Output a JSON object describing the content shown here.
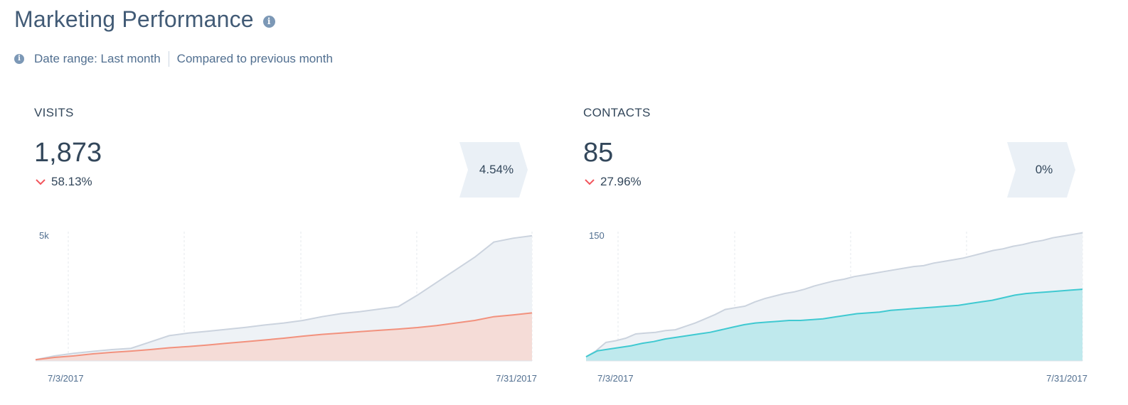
{
  "header": {
    "title": "Marketing Performance",
    "date_range": "Date range: Last month",
    "comparison": "Compared to previous month"
  },
  "cards": {
    "visits": {
      "label": "VISITS",
      "value": "1,873",
      "change": "58.13%",
      "change_direction": "down",
      "conversion": "4.54%"
    },
    "contacts": {
      "label": "CONTACTS",
      "value": "85",
      "change": "27.96%",
      "change_direction": "down",
      "conversion": "0%"
    }
  },
  "colors": {
    "visits_line": "#f2917d",
    "visits_fill": "#f5dcd7",
    "contacts_line": "#3fc9d1",
    "contacts_fill": "#bfe9ed",
    "previous_line": "#cbd3de",
    "previous_fill": "#eef2f6",
    "down_arrow": "#f2545b",
    "badge": "#eaf0f6"
  },
  "chart_data": [
    {
      "type": "area",
      "y_tick_label": "5k",
      "ylim": [
        0,
        5000
      ],
      "x_labels": [
        "7/3/2017",
        "7/31/2017"
      ],
      "series": [
        {
          "values": [
            50,
            200,
            300,
            380,
            450,
            500,
            750,
            1000,
            1100,
            1170,
            1250,
            1330,
            1420,
            1500,
            1600,
            1750,
            1870,
            1950,
            2050,
            2150,
            2600,
            3100,
            3600,
            4100,
            4700,
            4850,
            4950
          ]
        },
        {
          "values": [
            50,
            140,
            200,
            280,
            340,
            390,
            450,
            520,
            570,
            630,
            700,
            760,
            830,
            900,
            980,
            1050,
            1100,
            1160,
            1210,
            1260,
            1320,
            1400,
            1500,
            1600,
            1750,
            1820,
            1900
          ]
        }
      ]
    },
    {
      "type": "area",
      "y_tick_label": "150",
      "ylim": [
        0,
        150
      ],
      "x_labels": [
        "7/3/2017",
        "7/31/2017"
      ],
      "series": [
        {
          "values": [
            5,
            12,
            22,
            24,
            27,
            32,
            33,
            34,
            36,
            37,
            41,
            45,
            50,
            55,
            61,
            63,
            65,
            70,
            74,
            77,
            80,
            82,
            85,
            89,
            92,
            95,
            97,
            100,
            102,
            104,
            106,
            108,
            110,
            112,
            113,
            116,
            118,
            120,
            122,
            125,
            128,
            131,
            133,
            136,
            138,
            141,
            143,
            146,
            148,
            150,
            152
          ]
        },
        {
          "values": [
            5,
            12,
            14,
            16,
            18,
            21,
            23,
            26,
            28,
            30,
            32,
            34,
            37,
            40,
            43,
            45,
            46,
            47,
            48,
            48,
            49,
            50,
            52,
            54,
            56,
            57,
            58,
            60,
            61,
            62,
            63,
            64,
            65,
            66,
            68,
            70,
            72,
            75,
            78,
            80,
            81,
            82,
            83,
            84,
            85
          ]
        }
      ]
    }
  ]
}
